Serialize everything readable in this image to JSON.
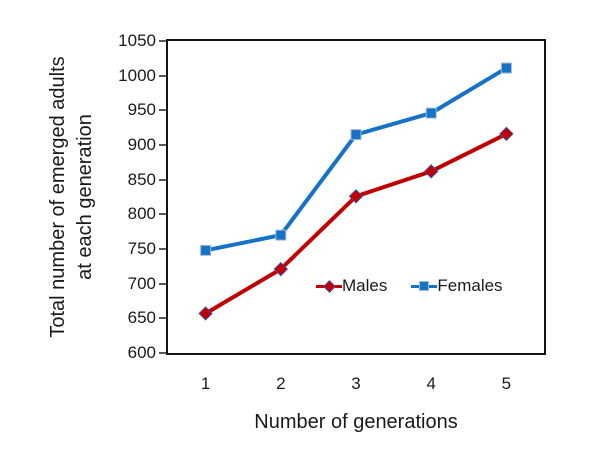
{
  "chart_data": {
    "type": "line",
    "xlabel": "Number of generations",
    "ylabel": "Total number of emerged adults at each generation",
    "ylabel_lines": [
      "Total number of emerged adults",
      "at each generation"
    ],
    "categories": [
      "1",
      "2",
      "3",
      "4",
      "5"
    ],
    "series": [
      {
        "name": "Males",
        "marker": "diamond",
        "color": "#c00000",
        "marker_border": "#3f4fa1",
        "values": [
          657,
          721,
          826,
          862,
          916
        ]
      },
      {
        "name": "Females",
        "marker": "square",
        "color": "#1572c6",
        "marker_border": "#a3b8d4",
        "values": [
          748,
          770,
          915,
          946,
          1011
        ]
      }
    ],
    "ylim": [
      600,
      1050
    ],
    "yticks": [
      600,
      650,
      700,
      750,
      800,
      850,
      900,
      950,
      1000,
      1050
    ],
    "grid": false,
    "legend_position": "inside-bottom",
    "axis_color": "#141414",
    "tick_color": "#595959",
    "text_color": "#1a1a1a",
    "background": "#ffffff"
  }
}
